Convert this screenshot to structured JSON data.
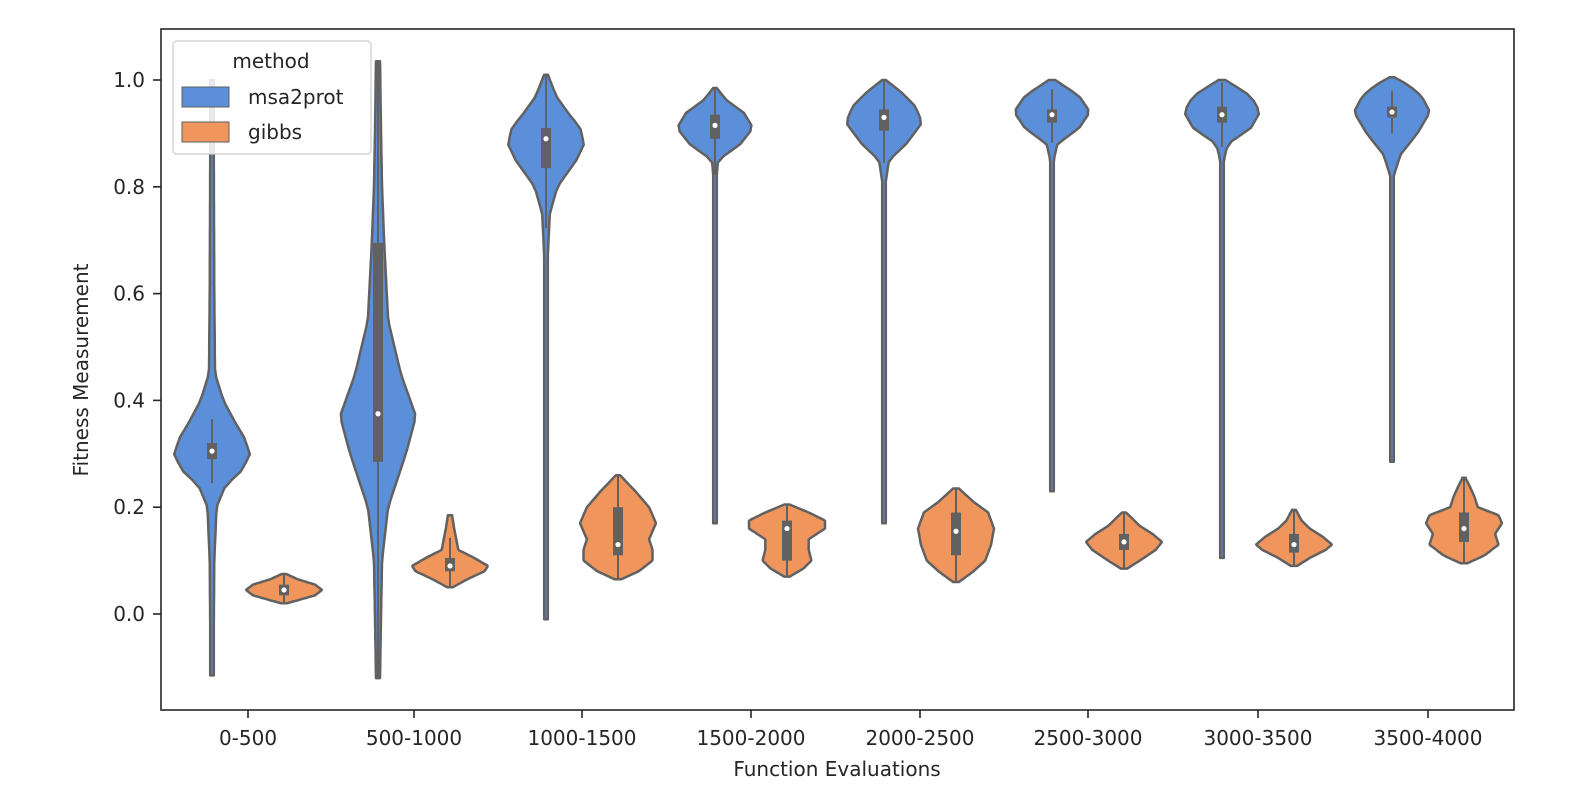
{
  "chart_data": {
    "type": "violin",
    "title": "",
    "xlabel": "Function Evaluations",
    "ylabel": "Fitness Measurement",
    "ylim": [
      -0.18,
      1.1
    ],
    "yticks": [
      "0.0",
      "0.2",
      "0.4",
      "0.6",
      "0.8",
      "1.0"
    ],
    "ytick_values": [
      0.0,
      0.2,
      0.4,
      0.6,
      0.8,
      1.0
    ],
    "categories": [
      "0-500",
      "500-1000",
      "1000-1500",
      "1500-2000",
      "2000-2500",
      "2500-3000",
      "3000-3500",
      "3500-4000"
    ],
    "grid": false,
    "legend": {
      "title": "method",
      "placement": "top-left"
    },
    "series": [
      {
        "name": "msa2prot",
        "color": "#5b8fd9",
        "violins": [
          {
            "min": -0.115,
            "max": 1.0,
            "q1": 0.29,
            "median": 0.305,
            "q3": 0.32,
            "profile": [
              [
                -0.115,
                0.004
              ],
              [
                0.0,
                0.005
              ],
              [
                0.1,
                0.006
              ],
              [
                0.2,
                0.012
              ],
              [
                0.24,
                0.035
              ],
              [
                0.27,
                0.08
              ],
              [
                0.3,
                0.1
              ],
              [
                0.33,
                0.085
              ],
              [
                0.36,
                0.06
              ],
              [
                0.4,
                0.03
              ],
              [
                0.45,
                0.008
              ],
              [
                0.6,
                0.006
              ],
              [
                0.8,
                0.005
              ],
              [
                1.0,
                0.004
              ]
            ]
          },
          {
            "min": -0.12,
            "max": 1.035,
            "q1": 0.285,
            "median": 0.375,
            "q3": 0.695,
            "profile": [
              [
                -0.12,
                0.004
              ],
              [
                0.0,
                0.006
              ],
              [
                0.1,
                0.008
              ],
              [
                0.2,
                0.02
              ],
              [
                0.3,
                0.055
              ],
              [
                0.37,
                0.075
              ],
              [
                0.45,
                0.045
              ],
              [
                0.55,
                0.02
              ],
              [
                0.7,
                0.012
              ],
              [
                0.8,
                0.008
              ],
              [
                0.9,
                0.006
              ],
              [
                1.035,
                0.004
              ]
            ]
          },
          {
            "min": -0.01,
            "max": 1.01,
            "q1": 0.835,
            "median": 0.89,
            "q3": 0.91,
            "profile": [
              [
                -0.01,
                0.005
              ],
              [
                0.2,
                0.005
              ],
              [
                0.5,
                0.007
              ],
              [
                0.65,
                0.01
              ],
              [
                0.75,
                0.03
              ],
              [
                0.8,
                0.09
              ],
              [
                0.85,
                0.24
              ],
              [
                0.88,
                0.3
              ],
              [
                0.91,
                0.27
              ],
              [
                0.94,
                0.17
              ],
              [
                0.97,
                0.08
              ],
              [
                1.01,
                0.015
              ]
            ]
          },
          {
            "min": 0.17,
            "max": 0.985,
            "q1": 0.89,
            "median": 0.915,
            "q3": 0.935,
            "profile": [
              [
                0.17,
                0.005
              ],
              [
                0.5,
                0.006
              ],
              [
                0.75,
                0.007
              ],
              [
                0.8,
                0.01
              ],
              [
                0.85,
                0.05
              ],
              [
                0.88,
                0.4
              ],
              [
                0.91,
                0.6
              ],
              [
                0.94,
                0.45
              ],
              [
                0.96,
                0.2
              ],
              [
                0.985,
                0.02
              ]
            ]
          },
          {
            "min": 0.17,
            "max": 1.0,
            "q1": 0.905,
            "median": 0.93,
            "q3": 0.945,
            "profile": [
              [
                0.17,
                0.005
              ],
              [
                0.5,
                0.006
              ],
              [
                0.75,
                0.007
              ],
              [
                0.8,
                0.015
              ],
              [
                0.85,
                0.08
              ],
              [
                0.88,
                0.35
              ],
              [
                0.92,
                0.6
              ],
              [
                0.95,
                0.5
              ],
              [
                0.98,
                0.25
              ],
              [
                1.0,
                0.02
              ]
            ]
          },
          {
            "min": 0.23,
            "max": 1.0,
            "q1": 0.92,
            "median": 0.935,
            "q3": 0.945,
            "profile": [
              [
                0.23,
                0.005
              ],
              [
                0.5,
                0.006
              ],
              [
                0.8,
                0.007
              ],
              [
                0.85,
                0.015
              ],
              [
                0.88,
                0.05
              ],
              [
                0.91,
                0.25
              ],
              [
                0.94,
                0.35
              ],
              [
                0.97,
                0.25
              ],
              [
                1.0,
                0.03
              ]
            ]
          },
          {
            "min": 0.105,
            "max": 1.0,
            "q1": 0.92,
            "median": 0.935,
            "q3": 0.95,
            "profile": [
              [
                0.105,
                0.005
              ],
              [
                0.5,
                0.006
              ],
              [
                0.8,
                0.007
              ],
              [
                0.85,
                0.015
              ],
              [
                0.88,
                0.05
              ],
              [
                0.91,
                0.25
              ],
              [
                0.94,
                0.33
              ],
              [
                0.97,
                0.25
              ],
              [
                1.0,
                0.03
              ]
            ]
          },
          {
            "min": 0.285,
            "max": 1.005,
            "q1": 0.93,
            "median": 0.94,
            "q3": 0.95,
            "profile": [
              [
                0.285,
                0.005
              ],
              [
                0.5,
                0.006
              ],
              [
                0.75,
                0.008
              ],
              [
                0.82,
                0.02
              ],
              [
                0.86,
                0.1
              ],
              [
                0.9,
                0.3
              ],
              [
                0.94,
                0.45
              ],
              [
                0.97,
                0.35
              ],
              [
                0.99,
                0.2
              ],
              [
                1.005,
                0.03
              ]
            ]
          }
        ]
      },
      {
        "name": "gibbs",
        "color": "#f0955c",
        "violins": [
          {
            "min": 0.02,
            "max": 0.075,
            "q1": 0.035,
            "median": 0.045,
            "q3": 0.055,
            "profile": [
              [
                0.02,
                0.04
              ],
              [
                0.025,
                0.18
              ],
              [
                0.035,
                0.45
              ],
              [
                0.045,
                0.55
              ],
              [
                0.055,
                0.45
              ],
              [
                0.065,
                0.2
              ],
              [
                0.075,
                0.03
              ]
            ]
          },
          {
            "min": 0.05,
            "max": 0.185,
            "q1": 0.08,
            "median": 0.09,
            "q3": 0.105,
            "profile": [
              [
                0.05,
                0.04
              ],
              [
                0.065,
                0.25
              ],
              [
                0.08,
                0.5
              ],
              [
                0.09,
                0.55
              ],
              [
                0.105,
                0.35
              ],
              [
                0.12,
                0.12
              ],
              [
                0.14,
                0.09
              ],
              [
                0.16,
                0.06
              ],
              [
                0.185,
                0.03
              ]
            ]
          },
          {
            "min": 0.065,
            "max": 0.26,
            "q1": 0.11,
            "median": 0.13,
            "q3": 0.2,
            "profile": [
              [
                0.065,
                0.05
              ],
              [
                0.08,
                0.3
              ],
              [
                0.1,
                0.5
              ],
              [
                0.12,
                0.5
              ],
              [
                0.14,
                0.45
              ],
              [
                0.17,
                0.55
              ],
              [
                0.2,
                0.45
              ],
              [
                0.23,
                0.25
              ],
              [
                0.26,
                0.03
              ]
            ]
          },
          {
            "min": 0.07,
            "max": 0.205,
            "q1": 0.1,
            "median": 0.16,
            "q3": 0.175,
            "profile": [
              [
                0.07,
                0.05
              ],
              [
                0.085,
                0.3
              ],
              [
                0.1,
                0.45
              ],
              [
                0.12,
                0.4
              ],
              [
                0.14,
                0.4
              ],
              [
                0.16,
                0.7
              ],
              [
                0.175,
                0.7
              ],
              [
                0.19,
                0.4
              ],
              [
                0.205,
                0.05
              ]
            ]
          },
          {
            "min": 0.06,
            "max": 0.235,
            "q1": 0.11,
            "median": 0.155,
            "q3": 0.19,
            "profile": [
              [
                0.06,
                0.05
              ],
              [
                0.08,
                0.3
              ],
              [
                0.1,
                0.5
              ],
              [
                0.13,
                0.6
              ],
              [
                0.16,
                0.65
              ],
              [
                0.19,
                0.55
              ],
              [
                0.21,
                0.3
              ],
              [
                0.235,
                0.05
              ]
            ]
          },
          {
            "min": 0.085,
            "max": 0.19,
            "q1": 0.12,
            "median": 0.135,
            "q3": 0.15,
            "profile": [
              [
                0.085,
                0.05
              ],
              [
                0.1,
                0.25
              ],
              [
                0.12,
                0.5
              ],
              [
                0.135,
                0.6
              ],
              [
                0.15,
                0.45
              ],
              [
                0.165,
                0.25
              ],
              [
                0.18,
                0.12
              ],
              [
                0.19,
                0.03
              ]
            ]
          },
          {
            "min": 0.09,
            "max": 0.195,
            "q1": 0.115,
            "median": 0.13,
            "q3": 0.15,
            "profile": [
              [
                0.09,
                0.05
              ],
              [
                0.105,
                0.25
              ],
              [
                0.12,
                0.5
              ],
              [
                0.13,
                0.6
              ],
              [
                0.145,
                0.45
              ],
              [
                0.16,
                0.25
              ],
              [
                0.175,
                0.12
              ],
              [
                0.195,
                0.03
              ]
            ]
          },
          {
            "min": 0.095,
            "max": 0.255,
            "q1": 0.135,
            "median": 0.16,
            "q3": 0.19,
            "profile": [
              [
                0.095,
                0.05
              ],
              [
                0.11,
                0.3
              ],
              [
                0.13,
                0.5
              ],
              [
                0.15,
                0.45
              ],
              [
                0.17,
                0.55
              ],
              [
                0.185,
                0.5
              ],
              [
                0.2,
                0.2
              ],
              [
                0.22,
                0.15
              ],
              [
                0.24,
                0.08
              ],
              [
                0.255,
                0.02
              ]
            ]
          }
        ]
      }
    ]
  }
}
